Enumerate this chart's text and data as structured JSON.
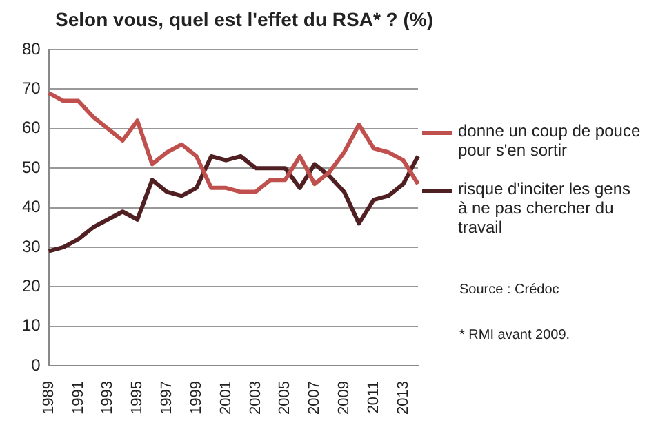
{
  "chart_data": {
    "type": "line",
    "title": "Selon vous, quel est l'effet du RSA*  ? (%)",
    "categories": [
      "1989",
      null,
      "1991",
      null,
      "1993",
      null,
      "1995",
      null,
      "1997",
      null,
      "1999",
      null,
      "2001",
      null,
      "2003",
      null,
      "2005",
      null,
      "2007",
      null,
      "2009",
      null,
      "2011",
      null,
      "2013",
      null
    ],
    "series": [
      {
        "name": "donne un coup de pouce pour s'en sortir",
        "color": "#c0504d",
        "values": [
          69,
          67,
          67,
          63,
          60,
          57,
          62,
          51,
          54,
          56,
          53,
          45,
          45,
          44,
          44,
          47,
          47,
          53,
          46,
          49,
          54,
          61,
          55,
          54,
          52,
          46
        ]
      },
      {
        "name": "risque d'inciter les gens à ne pas chercher du travail",
        "color": "#4f1f22",
        "values": [
          29,
          30,
          32,
          35,
          37,
          39,
          37,
          47,
          44,
          43,
          45,
          53,
          52,
          53,
          50,
          50,
          50,
          45,
          51,
          48,
          44,
          36,
          42,
          43,
          46,
          53
        ]
      }
    ],
    "ylim": [
      0,
      80
    ],
    "yticks": [
      0,
      10,
      20,
      30,
      40,
      50,
      60,
      70,
      80
    ],
    "grid": "y",
    "legend": "right",
    "marker": "none",
    "line_style": "solid",
    "annotations": [
      "Source : Crédoc",
      "* RMI avant 2009."
    ]
  }
}
